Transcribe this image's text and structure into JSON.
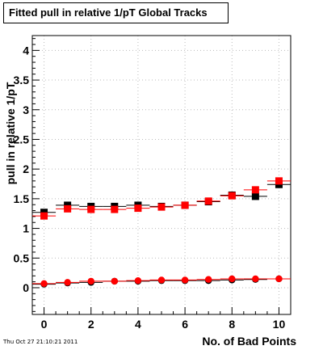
{
  "chart_data": {
    "type": "scatter",
    "title": "Fitted pull in relative 1/pT  Global Tracks",
    "xlabel": "No. of Bad Points",
    "ylabel": "pull in relative 1/pT",
    "timestamp": "Thu Oct 27 21:10:21 2011",
    "xlim": [
      -0.5,
      10.5
    ],
    "ylim": [
      -0.45,
      4.25
    ],
    "x_ticks": [
      "0",
      "2",
      "4",
      "6",
      "8",
      "10"
    ],
    "y_ticks": [
      "0",
      "0.5",
      "1",
      "1.5",
      "2",
      "2.5",
      "3",
      "3.5",
      "4"
    ],
    "grid": true,
    "legend": "none",
    "x": [
      0,
      1,
      2,
      3,
      4,
      5,
      6,
      7,
      8,
      9,
      10
    ],
    "series": [
      {
        "marker": "square",
        "color": "#000000",
        "values": [
          1.27,
          1.39,
          1.37,
          1.37,
          1.39,
          1.37,
          1.39,
          1.45,
          1.56,
          1.54,
          1.74
        ]
      },
      {
        "marker": "square",
        "color": "#ff0000",
        "values": [
          1.21,
          1.33,
          1.32,
          1.32,
          1.34,
          1.36,
          1.39,
          1.46,
          1.55,
          1.65,
          1.8
        ]
      },
      {
        "marker": "circle",
        "color": "#000000",
        "values": [
          0.06,
          0.08,
          0.09,
          0.11,
          0.11,
          0.12,
          0.12,
          0.12,
          0.13,
          0.14,
          0.15
        ]
      },
      {
        "marker": "circle",
        "color": "#ff0000",
        "values": [
          0.07,
          0.09,
          0.11,
          0.11,
          0.12,
          0.13,
          0.13,
          0.14,
          0.15,
          0.15,
          0.15
        ]
      }
    ]
  }
}
